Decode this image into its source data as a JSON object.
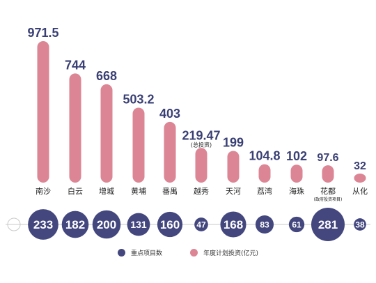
{
  "chart_data": {
    "type": "bar",
    "categories": [
      "南沙",
      "白云",
      "增城",
      "黄埔",
      "番禺",
      "越秀",
      "天河",
      "荔湾",
      "海珠",
      "花都",
      "从化"
    ],
    "category_notes": [
      "",
      "",
      "",
      "",
      "",
      "",
      "",
      "",
      "",
      "(政府投资项目)",
      ""
    ],
    "series": [
      {
        "name": "年度计划投资(亿元)",
        "values": [
          971.5,
          744,
          668,
          503.2,
          403,
          219.47,
          199,
          104.8,
          102,
          97.6,
          32
        ],
        "value_labels": [
          "971.5",
          "744",
          "668",
          "503.2",
          "403",
          "219.47",
          "199",
          "104.8",
          "102",
          "97.6",
          "32"
        ],
        "value_notes": [
          "",
          "",
          "",
          "",
          "",
          "(总投资)",
          "",
          "",
          "",
          "",
          ""
        ]
      },
      {
        "name": "重点项目数",
        "values": [
          233,
          182,
          200,
          131,
          160,
          47,
          168,
          83,
          61,
          281,
          38
        ]
      }
    ],
    "legend_position": "bottom-center",
    "colors": {
      "bar": "#dc8595",
      "bubble": "#43477e",
      "value_text": "#3a3f74",
      "bubble_text": "#ffffff",
      "category_text": "#222222",
      "track": "#c9c9c9"
    }
  }
}
